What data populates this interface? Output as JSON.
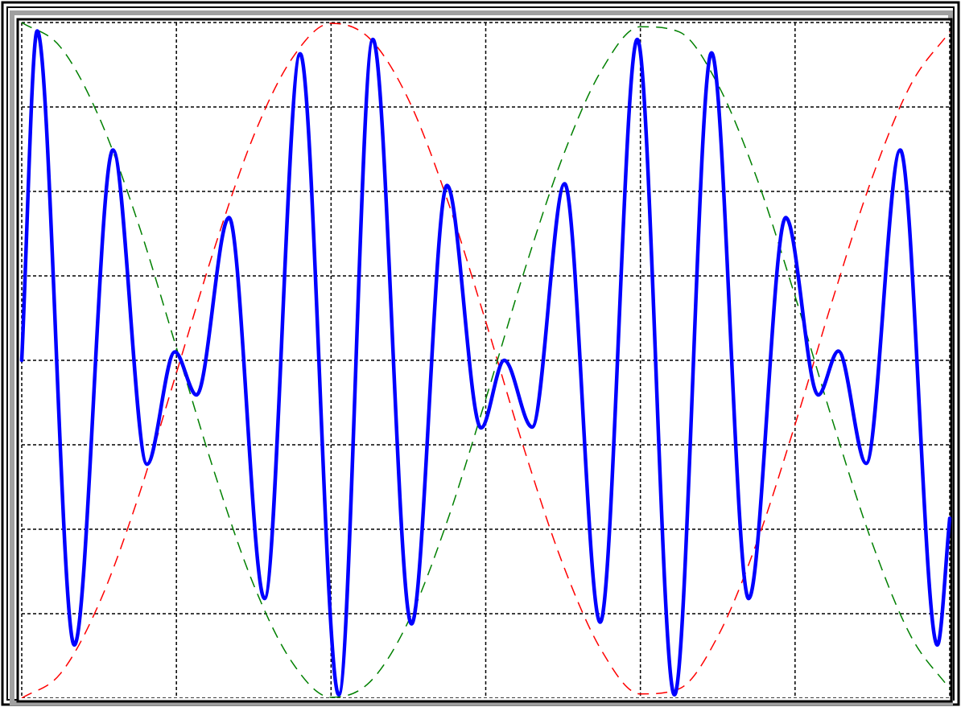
{
  "chart_data": {
    "type": "line",
    "xlim": [
      0,
      6
    ],
    "ylim": [
      -4,
      4
    ],
    "xticks": [
      0,
      1,
      2,
      3,
      4,
      5,
      6
    ],
    "yticks": [
      -4,
      -3,
      -2,
      -1,
      0,
      1,
      2,
      3,
      4
    ],
    "grid": true,
    "grid_color": "#000000",
    "series": [
      {
        "color": "#ff0000",
        "dashed": true,
        "width": 1.5,
        "x": [
          0,
          0.25,
          0.5,
          0.75,
          1,
          1.25,
          1.5,
          1.75,
          2,
          2.25,
          2.5,
          2.75,
          3,
          3.25,
          3.5,
          3.75,
          4,
          4.25,
          4.5,
          4.75,
          5,
          5.25,
          5.5,
          5.75,
          6
        ],
        "values": [
          -4,
          -3.71,
          -2.88,
          -1.64,
          -0.15,
          1.35,
          2.66,
          3.58,
          3.99,
          3.81,
          3.09,
          1.91,
          0.46,
          -1.06,
          -2.42,
          -3.44,
          -3.95,
          -3.89,
          -3.27,
          -2.17,
          -0.76,
          0.76,
          2.17,
          3.27,
          3.89
        ]
      },
      {
        "color": "#008000",
        "dashed": true,
        "width": 1.5,
        "x": [
          0,
          0.25,
          0.5,
          0.75,
          1,
          1.25,
          1.5,
          1.75,
          2,
          2.25,
          2.5,
          2.75,
          3,
          3.25,
          3.5,
          3.75,
          4,
          4.25,
          4.5,
          4.75,
          5,
          5.25,
          5.5,
          5.75,
          6
        ],
        "values": [
          4,
          3.71,
          2.88,
          1.64,
          0.15,
          -1.35,
          -2.66,
          -3.58,
          -3.99,
          -3.81,
          -3.09,
          -1.91,
          -0.46,
          1.06,
          2.42,
          3.44,
          3.95,
          3.89,
          3.27,
          2.17,
          0.76,
          -0.76,
          -2.17,
          -3.27,
          -3.89
        ]
      },
      {
        "color": "#0000ff",
        "dashed": false,
        "width": 4.5,
        "x": [
          0,
          0.1,
          0.34,
          0.59,
          0.81,
          0.99,
          1.13,
          1.34,
          1.57,
          1.8,
          2.05,
          2.27,
          2.52,
          2.75,
          2.97,
          3.12,
          3.3,
          3.51,
          3.74,
          3.98,
          4.22,
          4.46,
          4.7,
          4.94,
          5.15,
          5.28,
          5.46,
          5.68,
          5.92,
          6
        ],
        "values": [
          0,
          3.9,
          -3.37,
          2.49,
          -1.23,
          0.1,
          -0.41,
          1.69,
          -2.82,
          3.63,
          -3.96,
          3.8,
          -3.12,
          2.07,
          -0.8,
          0,
          -0.79,
          2.09,
          -3.1,
          3.8,
          -3.96,
          3.64,
          -2.82,
          1.69,
          -0.41,
          0.11,
          -1.22,
          2.49,
          -3.37,
          -1.87
        ]
      }
    ]
  }
}
